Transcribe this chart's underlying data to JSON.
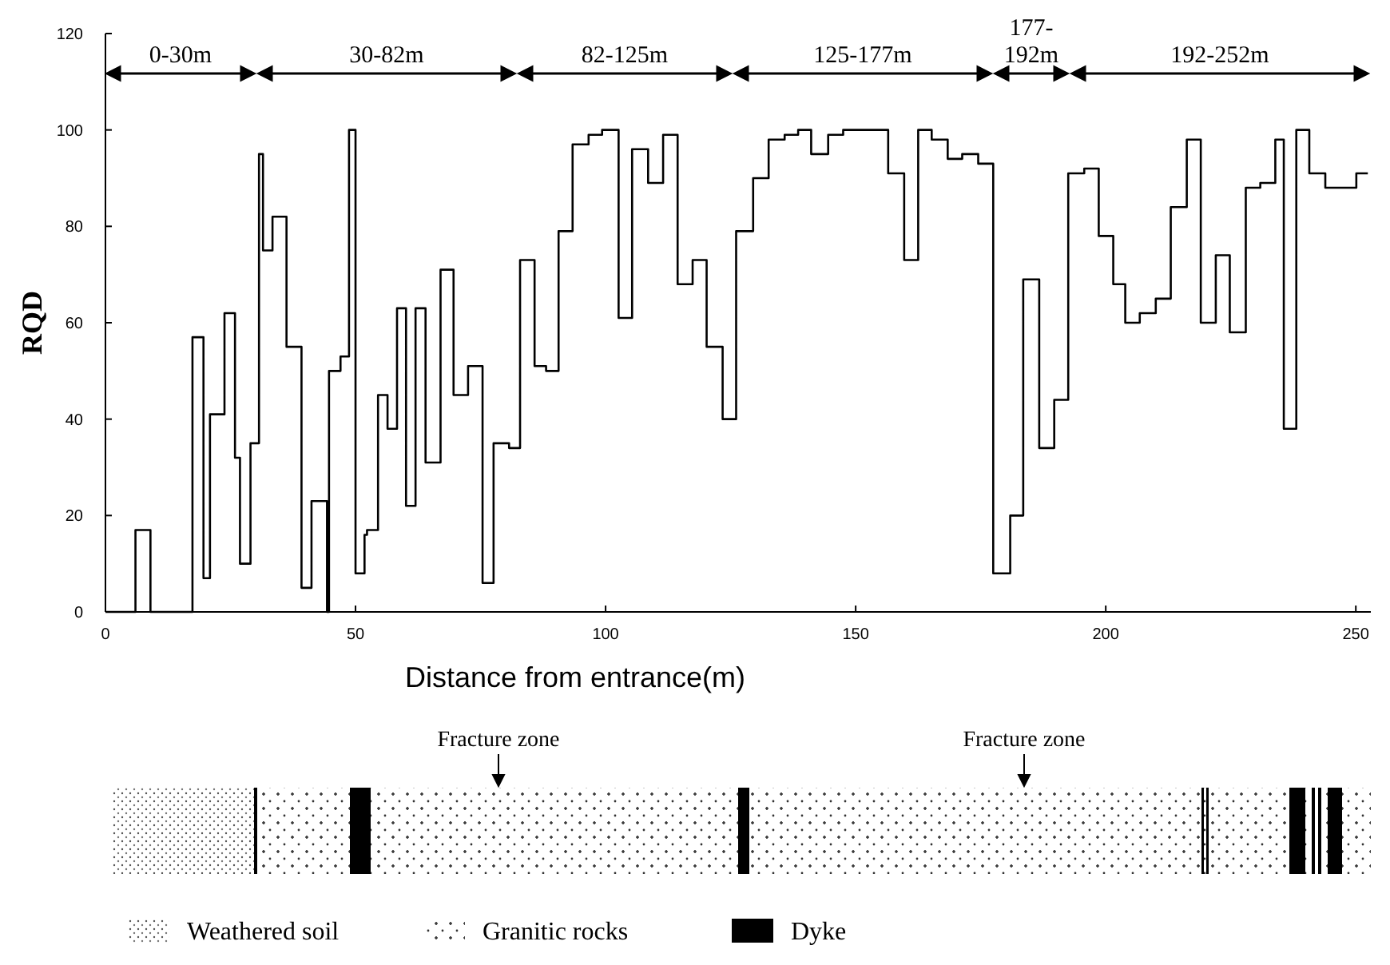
{
  "chart_data": {
    "type": "step",
    "xlabel": "Distance from entrance(m)",
    "ylabel": "RQD",
    "x": [
      0,
      6,
      9,
      17.4,
      19.6,
      20.9,
      23.8,
      25.9,
      26.9,
      29,
      30.7,
      31.5,
      33.4,
      36.2,
      39.2,
      41.2,
      44.3,
      44.7,
      47,
      48.7,
      50,
      51.8,
      52.3,
      54.5,
      56.4,
      58.3,
      60.1,
      62,
      64,
      67,
      69.6,
      72.5,
      75.4,
      77.6,
      80.7,
      82.9,
      85.8,
      88.1,
      90.6,
      93.4,
      96.6,
      99.3,
      102.6,
      105.3,
      108.5,
      111.5,
      114.4,
      117.4,
      120.2,
      123.4,
      126.1,
      129.5,
      132.6,
      135.8,
      138.5,
      141.1,
      144.5,
      147.5,
      156.5,
      159.7,
      162.5,
      165.2,
      168.4,
      171.3,
      174.5,
      177.5,
      180.9,
      183.5,
      186.7,
      189.7,
      192.5,
      195.7,
      198.6,
      201.5,
      203.9,
      206.8,
      210,
      213,
      216.2,
      219,
      222,
      224.8,
      228,
      230.9,
      233.9,
      235.6,
      238.1,
      240.7,
      243.9,
      250.1,
      252.4
    ],
    "values": [
      0,
      17,
      0,
      57,
      7,
      41,
      62,
      32,
      10,
      35,
      95,
      75,
      82,
      55,
      5,
      23,
      0,
      50,
      53,
      100,
      8,
      16,
      17,
      45,
      38,
      63,
      22,
      63,
      31,
      71,
      45,
      51,
      6,
      35,
      34,
      73,
      51,
      50,
      79,
      97,
      99,
      100,
      61,
      96,
      89,
      99,
      68,
      73,
      55,
      40,
      79,
      90,
      98,
      99,
      100,
      95,
      99,
      100,
      91,
      73,
      100,
      98,
      94,
      95,
      93,
      8,
      20,
      69,
      34,
      44,
      91,
      92,
      78,
      68,
      60,
      62,
      65,
      84,
      98,
      60,
      74,
      58,
      88,
      89,
      98,
      38,
      100,
      91,
      88,
      91,
      91
    ],
    "color": "#000000",
    "xlim": [
      0,
      253
    ],
    "xticks": [
      0,
      50,
      100,
      150,
      200,
      250
    ],
    "ylim": [
      0,
      120
    ],
    "yticks": [
      0,
      20,
      40,
      60,
      80,
      100,
      120
    ],
    "annotations": [
      "0-30m",
      "30-82m",
      "82-125m",
      "125-177m",
      "177-192m",
      "192-252m",
      "Fracture zone",
      "Fracture zone",
      "Weathered soil",
      "Granitic rocks",
      "Dyke"
    ]
  }
}
